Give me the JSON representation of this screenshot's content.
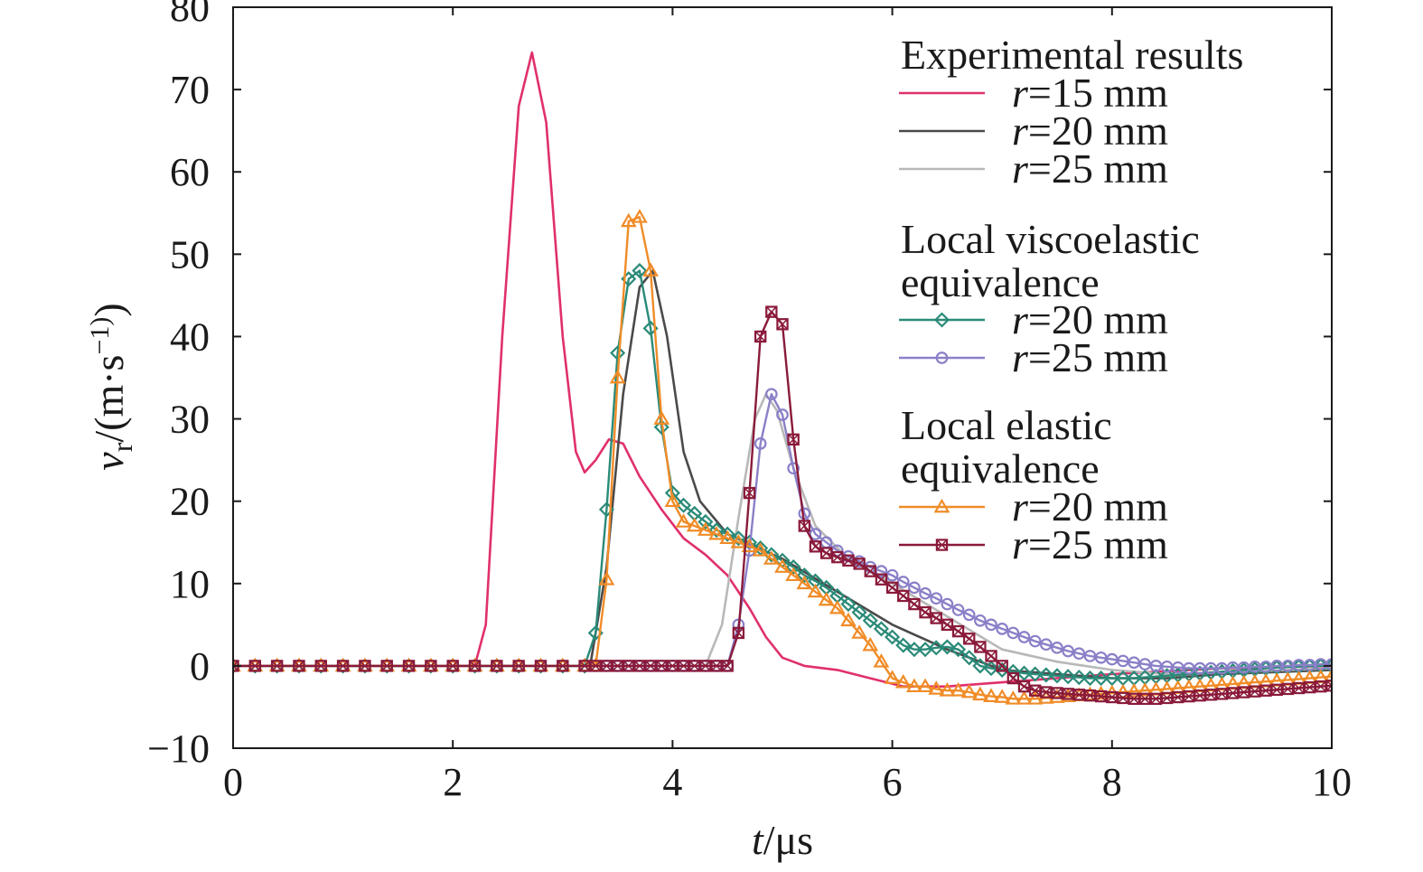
{
  "chart_data": {
    "type": "line",
    "xlabel": "t/μs",
    "ylabel": "vr/(m·s−1)",
    "xlim": [
      0,
      10
    ],
    "ylim": [
      -10,
      80
    ],
    "xticks": [
      0,
      2,
      4,
      6,
      8,
      10
    ],
    "yticks": [
      -10,
      0,
      10,
      20,
      30,
      40,
      50,
      60,
      70,
      80
    ],
    "grid": false,
    "legend_position": "top-right",
    "legend_groups": [
      {
        "title": "Experimental results",
        "series": [
          0,
          1,
          2
        ]
      },
      {
        "title": "Local viscoelastic equivalence",
        "series": [
          3,
          4
        ]
      },
      {
        "title": "Local elastic equivalence",
        "series": [
          5,
          6
        ]
      }
    ],
    "series": [
      {
        "name": "r=15 mm",
        "color": "#e0306a",
        "marker": "none",
        "x": [
          0,
          2.2,
          2.3,
          2.45,
          2.6,
          2.72,
          2.85,
          3.0,
          3.12,
          3.2,
          3.3,
          3.42,
          3.55,
          3.7,
          3.9,
          4.1,
          4.3,
          4.5,
          4.7,
          4.85,
          5.0,
          5.2,
          5.5,
          5.8,
          6.1,
          6.5,
          7.0,
          8.0,
          9.0,
          10.0
        ],
        "y": [
          0,
          0,
          5,
          40,
          68,
          74.5,
          66,
          40,
          26,
          23.5,
          25,
          27.5,
          27,
          23,
          19,
          15.5,
          13.5,
          11,
          7,
          3.5,
          1,
          0,
          -0.5,
          -1.5,
          -2.5,
          -2.5,
          -2,
          -1,
          -0.3,
          0
        ]
      },
      {
        "name": "r=20 mm",
        "color": "#4a4a4a",
        "marker": "none",
        "x": [
          0,
          3.25,
          3.4,
          3.55,
          3.7,
          3.82,
          3.95,
          4.1,
          4.25,
          4.5,
          5.0,
          5.5,
          6.0,
          6.5,
          7.0,
          7.5,
          8.0,
          8.5,
          9.0,
          10.0
        ],
        "y": [
          0,
          0,
          12,
          33,
          46,
          48,
          40,
          26,
          20,
          16,
          13,
          9,
          5,
          2,
          -0.5,
          -1,
          -1.5,
          -1.5,
          -1,
          -0.5
        ]
      },
      {
        "name": "r=25 mm",
        "color": "#b8b8b8",
        "marker": "none",
        "x": [
          0,
          4.3,
          4.45,
          4.6,
          4.75,
          4.85,
          4.95,
          5.1,
          5.3,
          5.6,
          6.0,
          6.5,
          7.0,
          7.5,
          8.0,
          8.5,
          9.0,
          10.0
        ],
        "y": [
          0,
          0,
          5,
          18,
          30,
          33,
          31,
          24,
          17,
          13,
          10,
          6,
          2,
          0.5,
          -0.5,
          -1,
          -0.8,
          -0.3
        ]
      },
      {
        "name": "r=20 mm",
        "color": "#2a8a78",
        "marker": "diamond",
        "x": [
          0,
          0.1,
          0.2,
          0.3,
          0.4,
          0.5,
          0.6,
          0.7,
          0.8,
          0.9,
          1.0,
          1.1,
          1.2,
          1.3,
          1.4,
          1.5,
          1.6,
          1.7,
          1.8,
          1.9,
          2.0,
          2.1,
          2.2,
          2.3,
          2.4,
          2.5,
          2.6,
          2.7,
          2.8,
          2.9,
          3.0,
          3.1,
          3.2,
          3.3,
          3.4,
          3.5,
          3.6,
          3.7,
          3.8,
          3.9,
          4.0,
          4.1,
          4.2,
          4.3,
          4.4,
          4.5,
          4.6,
          4.7,
          4.8,
          4.9,
          5.0,
          5.1,
          5.2,
          5.3,
          5.4,
          5.5,
          5.6,
          5.7,
          5.8,
          5.9,
          6.0,
          6.1,
          6.2,
          6.3,
          6.4,
          6.5,
          6.6,
          6.7,
          6.8,
          6.9,
          7.0,
          7.1,
          7.2,
          7.3,
          7.4,
          7.5,
          7.6,
          7.7,
          7.8,
          7.9,
          8.0,
          8.1,
          8.2,
          8.3,
          8.4,
          8.5,
          8.6,
          8.7,
          8.8,
          8.9,
          9.0,
          9.1,
          9.2,
          9.3,
          9.4,
          9.5,
          9.6,
          9.7,
          9.8,
          9.9,
          10.0
        ],
        "y": [
          0,
          0,
          0,
          0,
          0,
          0,
          0,
          0,
          0,
          0,
          0,
          0,
          0,
          0,
          0,
          0,
          0,
          0,
          0,
          0,
          0,
          0,
          0,
          0,
          0,
          0,
          0,
          0,
          0,
          0,
          0,
          0,
          0,
          4,
          19,
          38,
          47,
          48,
          41,
          29,
          21,
          19.5,
          18.5,
          17.5,
          16.5,
          16,
          15.5,
          15,
          14.3,
          13.5,
          12.8,
          12,
          11,
          10.3,
          9.5,
          8.5,
          7.5,
          6.5,
          5.5,
          4.5,
          3.5,
          2.5,
          2,
          2,
          2.2,
          2.3,
          2,
          1,
          0,
          -0.3,
          -0.5,
          -0.7,
          -0.9,
          -1,
          -1.1,
          -1.2,
          -1.3,
          -1.4,
          -1.5,
          -1.5,
          -1.5,
          -1.5,
          -1.5,
          -1.4,
          -1.3,
          -1.2,
          -1.1,
          -1,
          -0.9,
          -0.8,
          -0.7,
          -0.6,
          -0.5,
          -0.4,
          -0.3,
          -0.2,
          -0.15,
          -0.1,
          -0.05,
          0,
          0
        ]
      },
      {
        "name": "r=25 mm",
        "color": "#8a80c8",
        "marker": "circle",
        "x": [
          0,
          0.1,
          0.2,
          0.3,
          0.4,
          0.5,
          0.6,
          0.7,
          0.8,
          0.9,
          1.0,
          1.1,
          1.2,
          1.3,
          1.4,
          1.5,
          1.6,
          1.7,
          1.8,
          1.9,
          2.0,
          2.1,
          2.2,
          2.3,
          2.4,
          2.5,
          2.6,
          2.7,
          2.8,
          2.9,
          3.0,
          3.1,
          3.2,
          3.3,
          3.4,
          3.5,
          3.6,
          3.7,
          3.8,
          3.9,
          4.0,
          4.1,
          4.2,
          4.3,
          4.4,
          4.5,
          4.6,
          4.7,
          4.8,
          4.9,
          5.0,
          5.1,
          5.2,
          5.3,
          5.4,
          5.5,
          5.6,
          5.7,
          5.8,
          5.9,
          6.0,
          6.1,
          6.2,
          6.3,
          6.4,
          6.5,
          6.6,
          6.7,
          6.8,
          6.9,
          7.0,
          7.1,
          7.2,
          7.3,
          7.4,
          7.5,
          7.6,
          7.7,
          7.8,
          7.9,
          8.0,
          8.1,
          8.2,
          8.3,
          8.4,
          8.5,
          8.6,
          8.7,
          8.8,
          8.9,
          9.0,
          9.1,
          9.2,
          9.3,
          9.4,
          9.5,
          9.6,
          9.7,
          9.8,
          9.9,
          10.0
        ],
        "y": [
          0,
          0,
          0,
          0,
          0,
          0,
          0,
          0,
          0,
          0,
          0,
          0,
          0,
          0,
          0,
          0,
          0,
          0,
          0,
          0,
          0,
          0,
          0,
          0,
          0,
          0,
          0,
          0,
          0,
          0,
          0,
          0,
          0,
          0,
          0,
          0,
          0,
          0,
          0,
          0,
          0,
          0,
          0,
          0,
          0,
          0,
          5,
          14,
          27,
          33,
          30.5,
          24,
          18.5,
          16,
          15,
          14,
          13.3,
          12.7,
          12,
          11.5,
          11,
          10.2,
          9.5,
          8.8,
          8.2,
          7.5,
          6.8,
          6.2,
          5.5,
          5,
          4.5,
          4,
          3.5,
          3,
          2.6,
          2.2,
          1.8,
          1.5,
          1.2,
          1,
          0.8,
          0.6,
          0.4,
          0.2,
          0,
          -0.1,
          -0.2,
          -0.3,
          -0.3,
          -0.3,
          -0.3,
          -0.2,
          -0.2,
          -0.1,
          -0.1,
          0,
          0,
          0.1,
          0.1,
          0.2,
          0.2
        ]
      },
      {
        "name": "r=20 mm",
        "color": "#f08c28",
        "marker": "triangle",
        "x": [
          0,
          0.1,
          0.2,
          0.3,
          0.4,
          0.5,
          0.6,
          0.7,
          0.8,
          0.9,
          1.0,
          1.1,
          1.2,
          1.3,
          1.4,
          1.5,
          1.6,
          1.7,
          1.8,
          1.9,
          2.0,
          2.1,
          2.2,
          2.3,
          2.4,
          2.5,
          2.6,
          2.7,
          2.8,
          2.9,
          3.0,
          3.1,
          3.2,
          3.3,
          3.4,
          3.5,
          3.6,
          3.7,
          3.8,
          3.9,
          4.0,
          4.1,
          4.2,
          4.3,
          4.4,
          4.5,
          4.6,
          4.7,
          4.8,
          4.9,
          5.0,
          5.1,
          5.2,
          5.3,
          5.4,
          5.5,
          5.6,
          5.7,
          5.8,
          5.9,
          6.0,
          6.1,
          6.2,
          6.3,
          6.4,
          6.5,
          6.6,
          6.7,
          6.8,
          6.9,
          7.0,
          7.1,
          7.2,
          7.3,
          7.4,
          7.5,
          7.6,
          7.7,
          7.8,
          7.9,
          8.0,
          8.1,
          8.2,
          8.3,
          8.4,
          8.5,
          8.6,
          8.7,
          8.8,
          8.9,
          9.0,
          9.1,
          9.2,
          9.3,
          9.4,
          9.5,
          9.6,
          9.7,
          9.8,
          9.9,
          10.0
        ],
        "y": [
          0,
          0,
          0,
          0,
          0,
          0,
          0,
          0,
          0,
          0,
          0,
          0,
          0,
          0,
          0,
          0,
          0,
          0,
          0,
          0,
          0,
          0,
          0,
          0,
          0,
          0,
          0,
          0,
          0,
          0,
          0,
          0,
          0,
          0,
          10.5,
          35,
          54,
          54.5,
          48,
          30,
          20,
          17.5,
          17,
          16.5,
          16,
          15.5,
          15,
          14.5,
          14,
          13,
          12,
          11,
          10,
          9,
          8,
          7,
          5.5,
          4,
          2.5,
          0.5,
          -1.5,
          -2,
          -2.5,
          -2.5,
          -2.8,
          -3,
          -3,
          -3.2,
          -3.5,
          -3.7,
          -3.8,
          -4,
          -4,
          -4,
          -3.9,
          -3.8,
          -3.7,
          -3.6,
          -3.5,
          -3.4,
          -3.3,
          -3.2,
          -3.1,
          -3,
          -2.9,
          -2.8,
          -2.7,
          -2.6,
          -2.5,
          -2.4,
          -2.3,
          -2.2,
          -2.1,
          -2,
          -1.9,
          -1.8,
          -1.7,
          -1.6,
          -1.5,
          -1.4,
          -1.3
        ]
      },
      {
        "name": "r=25 mm",
        "color": "#8a1a3a",
        "marker": "square",
        "x": [
          0,
          0.1,
          0.2,
          0.3,
          0.4,
          0.5,
          0.6,
          0.7,
          0.8,
          0.9,
          1.0,
          1.1,
          1.2,
          1.3,
          1.4,
          1.5,
          1.6,
          1.7,
          1.8,
          1.9,
          2.0,
          2.1,
          2.2,
          2.3,
          2.4,
          2.5,
          2.6,
          2.7,
          2.8,
          2.9,
          3.0,
          3.1,
          3.2,
          3.3,
          3.4,
          3.5,
          3.6,
          3.7,
          3.8,
          3.9,
          4.0,
          4.1,
          4.2,
          4.3,
          4.4,
          4.5,
          4.6,
          4.7,
          4.8,
          4.9,
          5.0,
          5.1,
          5.2,
          5.3,
          5.4,
          5.5,
          5.6,
          5.7,
          5.8,
          5.9,
          6.0,
          6.1,
          6.2,
          6.3,
          6.4,
          6.5,
          6.6,
          6.7,
          6.8,
          6.9,
          7.0,
          7.1,
          7.2,
          7.3,
          7.4,
          7.5,
          7.6,
          7.7,
          7.8,
          7.9,
          8.0,
          8.1,
          8.2,
          8.3,
          8.4,
          8.5,
          8.6,
          8.7,
          8.8,
          8.9,
          9.0,
          9.1,
          9.2,
          9.3,
          9.4,
          9.5,
          9.6,
          9.7,
          9.8,
          9.9,
          10.0
        ],
        "y": [
          0,
          0,
          0,
          0,
          0,
          0,
          0,
          0,
          0,
          0,
          0,
          0,
          0,
          0,
          0,
          0,
          0,
          0,
          0,
          0,
          0,
          0,
          0,
          0,
          0,
          0,
          0,
          0,
          0,
          0,
          0,
          0,
          0,
          0,
          0,
          0,
          0,
          0,
          0,
          0,
          0,
          0,
          0,
          0,
          0,
          0,
          4,
          21,
          40,
          43,
          41.5,
          27.5,
          17,
          14.5,
          13.7,
          13.2,
          12.8,
          12.4,
          11.5,
          10.5,
          9.5,
          8.5,
          7.5,
          6.5,
          5.8,
          5,
          4.2,
          3.3,
          2.3,
          1.2,
          0,
          -1.5,
          -2.5,
          -3,
          -3.2,
          -3.3,
          -3.4,
          -3.5,
          -3.6,
          -3.7,
          -3.8,
          -3.9,
          -4,
          -4,
          -4,
          -3.9,
          -3.8,
          -3.7,
          -3.6,
          -3.5,
          -3.4,
          -3.3,
          -3.2,
          -3.1,
          -3,
          -2.9,
          -2.8,
          -2.7,
          -2.6,
          -2.5,
          -2.4
        ]
      }
    ]
  }
}
